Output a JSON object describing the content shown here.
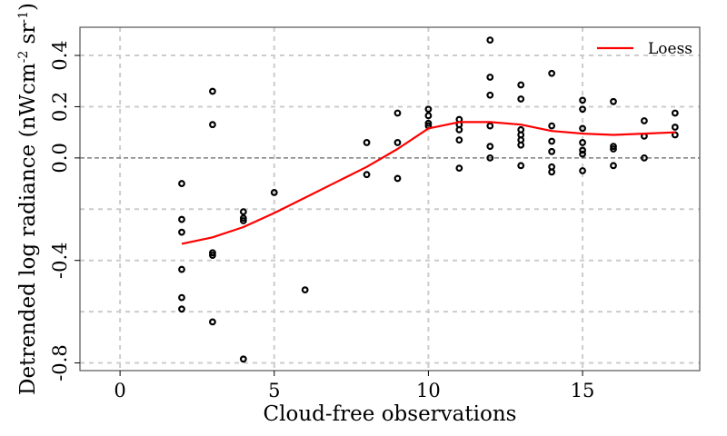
{
  "chart_data": {
    "type": "scatter",
    "xlabel": "Cloud-free observations",
    "ylabel": {
      "main": "Detrended log radiance (nWcm",
      "exp1": "-2",
      "mid": " sr",
      "exp2": "-1",
      "end": ")"
    },
    "xlim": [
      -1.3,
      18.8
    ],
    "ylim": [
      -0.83,
      0.51
    ],
    "x_ticks": [
      {
        "value": 0,
        "label": "0"
      },
      {
        "value": 5,
        "label": "5"
      },
      {
        "value": 10,
        "label": "10"
      },
      {
        "value": 15,
        "label": "15"
      }
    ],
    "y_ticks": [
      {
        "value": -0.8,
        "label": "-0.8"
      },
      {
        "value": -0.4,
        "label": "-0.4"
      },
      {
        "value": 0.0,
        "label": "0.0"
      },
      {
        "value": 0.2,
        "label": "0.2"
      },
      {
        "value": 0.4,
        "label": "0.4"
      }
    ],
    "x_grid": [
      0,
      5,
      10,
      15
    ],
    "y_grid": [
      -0.8,
      -0.6,
      -0.4,
      -0.2,
      0.2,
      0.4
    ],
    "reference_line": 0.0,
    "grid": true,
    "legend": {
      "position": "top-right",
      "entries": [
        {
          "name": "Loess",
          "color": "#ff0000"
        }
      ]
    },
    "points": [
      [
        2,
        -0.1
      ],
      [
        2,
        -0.24
      ],
      [
        2,
        -0.29
      ],
      [
        2,
        -0.435
      ],
      [
        2,
        -0.545
      ],
      [
        2,
        -0.59
      ],
      [
        3,
        0.26
      ],
      [
        3,
        0.13
      ],
      [
        3,
        -0.37
      ],
      [
        3,
        -0.38
      ],
      [
        3,
        -0.64
      ],
      [
        4,
        -0.21
      ],
      [
        4,
        -0.235
      ],
      [
        4,
        -0.245
      ],
      [
        4,
        -0.785
      ],
      [
        5,
        -0.135
      ],
      [
        6,
        -0.515
      ],
      [
        8,
        0.06
      ],
      [
        8,
        -0.065
      ],
      [
        9,
        0.175
      ],
      [
        9,
        0.06
      ],
      [
        9,
        -0.08
      ],
      [
        10,
        0.19
      ],
      [
        10,
        0.165
      ],
      [
        10,
        0.135
      ],
      [
        10,
        0.125
      ],
      [
        11,
        0.15
      ],
      [
        11,
        0.13
      ],
      [
        11,
        0.11
      ],
      [
        11,
        0.07
      ],
      [
        11,
        -0.04
      ],
      [
        12,
        0.46
      ],
      [
        12,
        0.315
      ],
      [
        12,
        0.245
      ],
      [
        12,
        0.125
      ],
      [
        12,
        0.045
      ],
      [
        12,
        0.0
      ],
      [
        13,
        0.285
      ],
      [
        13,
        0.23
      ],
      [
        13,
        0.11
      ],
      [
        13,
        0.09
      ],
      [
        13,
        0.07
      ],
      [
        13,
        0.05
      ],
      [
        13,
        -0.03
      ],
      [
        14,
        0.33
      ],
      [
        14,
        0.125
      ],
      [
        14,
        0.065
      ],
      [
        14,
        0.025
      ],
      [
        14,
        -0.035
      ],
      [
        14,
        -0.055
      ],
      [
        15,
        0.225
      ],
      [
        15,
        0.19
      ],
      [
        15,
        0.115
      ],
      [
        15,
        0.06
      ],
      [
        15,
        0.03
      ],
      [
        15,
        0.015
      ],
      [
        15,
        -0.05
      ],
      [
        16,
        0.22
      ],
      [
        16,
        0.045
      ],
      [
        16,
        0.035
      ],
      [
        16,
        -0.03
      ],
      [
        17,
        0.145
      ],
      [
        17,
        0.085
      ],
      [
        17,
        0.0
      ],
      [
        18,
        0.175
      ],
      [
        18,
        0.12
      ],
      [
        18,
        0.09
      ]
    ],
    "loess": {
      "name": "Loess",
      "color": "#ff0000",
      "x": [
        2,
        3,
        4,
        5,
        6,
        7,
        8,
        9,
        10,
        11,
        12,
        13,
        14,
        15,
        16,
        17,
        18
      ],
      "y": [
        -0.335,
        -0.31,
        -0.27,
        -0.215,
        -0.155,
        -0.095,
        -0.035,
        0.035,
        0.115,
        0.14,
        0.14,
        0.13,
        0.105,
        0.095,
        0.09,
        0.095,
        0.1
      ]
    }
  }
}
